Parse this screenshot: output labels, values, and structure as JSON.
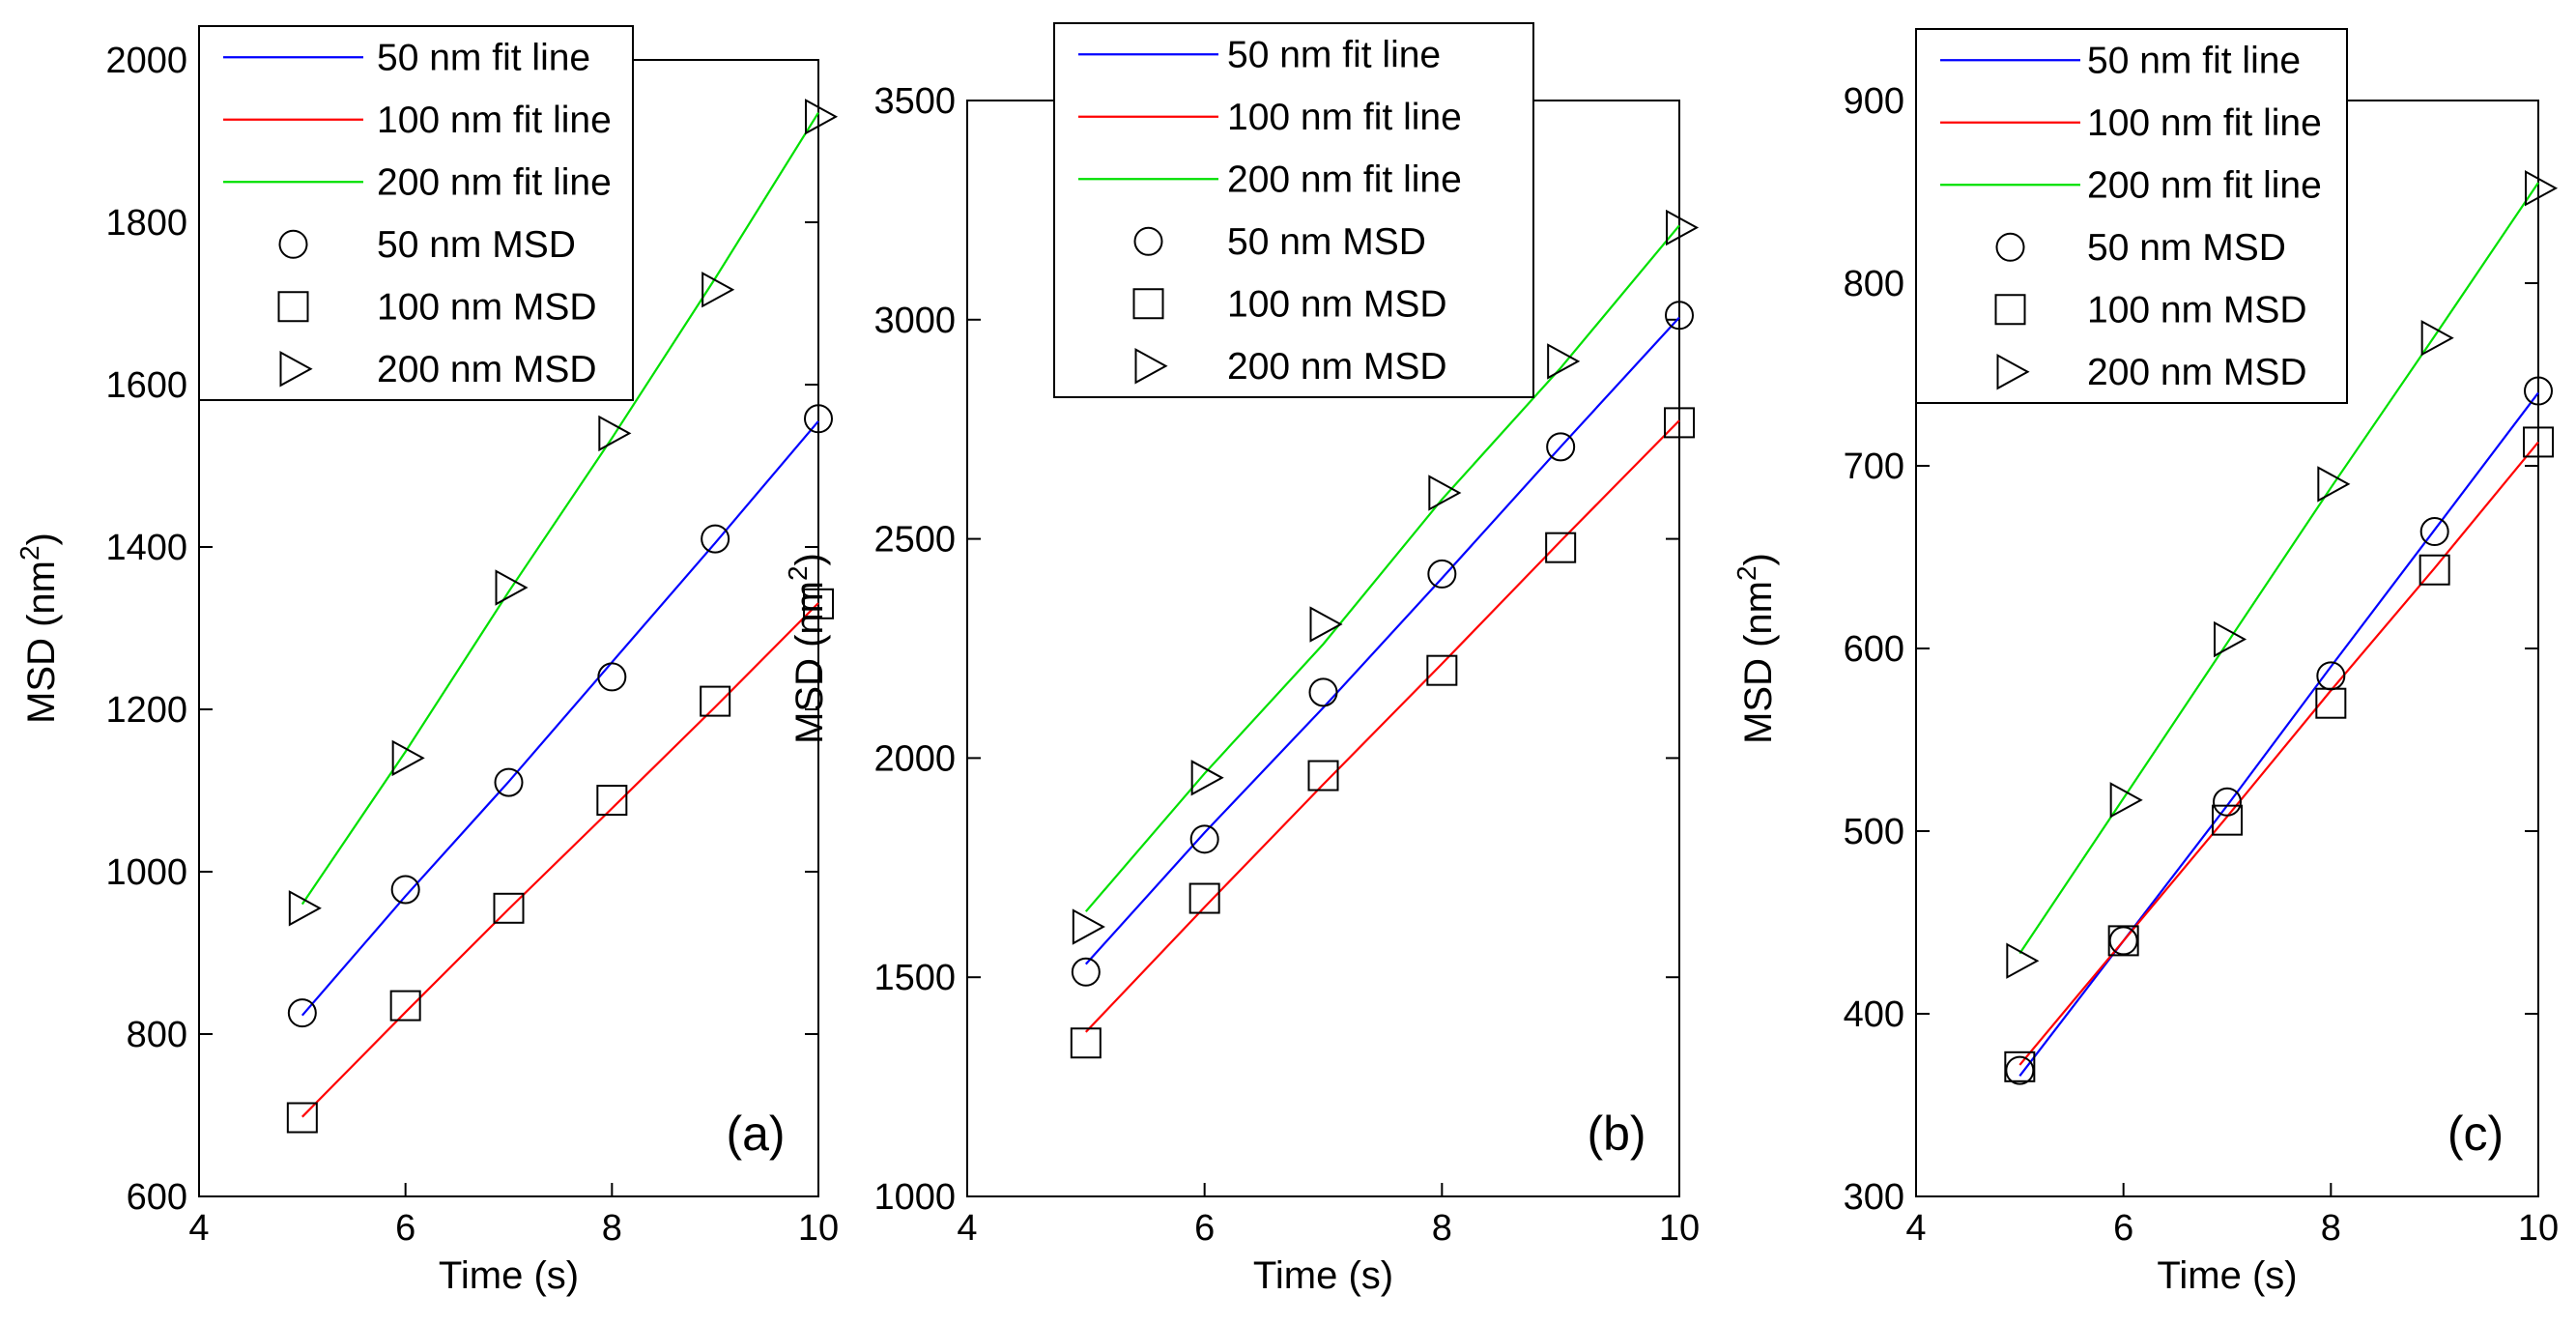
{
  "chart_data": [
    {
      "type": "line",
      "panel_label": "(a)",
      "xlabel": "Time (s)",
      "ylabel": "MSD (nm",
      "ylabel_sup": "2",
      "ylabel_end": ")",
      "xlim": [
        4,
        10
      ],
      "ylim": [
        600,
        2000
      ],
      "xticks": [
        4,
        6,
        8,
        10
      ],
      "yticks": [
        600,
        800,
        1000,
        1200,
        1400,
        1600,
        1800,
        2000
      ],
      "x": [
        5,
        6,
        7,
        8,
        9,
        10
      ],
      "series": [
        {
          "name": "50 nm fit line",
          "kind": "line",
          "color": "#0000ff",
          "values": [
            823,
            970,
            1111,
            1258,
            1405,
            1555
          ]
        },
        {
          "name": "100 nm fit line",
          "kind": "line",
          "color": "#ff0000",
          "values": [
            698,
            827,
            954,
            1078,
            1203,
            1331
          ]
        },
        {
          "name": "200 nm fit line",
          "kind": "line",
          "color": "#00e000",
          "values": [
            960,
            1148,
            1345,
            1534,
            1731,
            1935
          ]
        },
        {
          "name": "50 nm MSD",
          "kind": "marker",
          "marker": "circle",
          "values": [
            826,
            978,
            1110,
            1240,
            1410,
            1558
          ]
        },
        {
          "name": "100 nm MSD",
          "kind": "marker",
          "marker": "square",
          "values": [
            697,
            835,
            955,
            1088,
            1210,
            1330
          ]
        },
        {
          "name": "200 nm MSD",
          "kind": "marker",
          "marker": "triangle-right",
          "values": [
            955,
            1140,
            1350,
            1540,
            1717,
            1930
          ]
        }
      ]
    },
    {
      "type": "line",
      "panel_label": "(b)",
      "xlabel": "Time (s)",
      "ylabel": "MSD (nm",
      "ylabel_sup": "2",
      "ylabel_end": ")",
      "xlim": [
        4,
        10
      ],
      "ylim": [
        1000,
        3500
      ],
      "xticks": [
        4,
        6,
        8,
        10
      ],
      "yticks": [
        1000,
        1500,
        2000,
        2500,
        3000,
        3500
      ],
      "x": [
        5,
        6,
        7,
        8,
        9,
        10
      ],
      "series": [
        {
          "name": "50 nm fit line",
          "kind": "line",
          "color": "#0000ff",
          "values": [
            1530,
            1830,
            2115,
            2410,
            2710,
            3005
          ]
        },
        {
          "name": "100 nm fit line",
          "kind": "line",
          "color": "#ff0000",
          "values": [
            1375,
            1660,
            1940,
            2215,
            2495,
            2770
          ]
        },
        {
          "name": "200 nm fit line",
          "kind": "line",
          "color": "#00e000",
          "values": [
            1650,
            1965,
            2260,
            2590,
            2890,
            3215
          ]
        },
        {
          "name": "50 nm MSD",
          "kind": "marker",
          "marker": "circle",
          "values": [
            1512,
            1815,
            2150,
            2420,
            2710,
            3010
          ]
        },
        {
          "name": "100 nm MSD",
          "kind": "marker",
          "marker": "square",
          "values": [
            1350,
            1680,
            1960,
            2200,
            2480,
            2765
          ]
        },
        {
          "name": "200 nm MSD",
          "kind": "marker",
          "marker": "triangle-right",
          "values": [
            1615,
            1955,
            2305,
            2605,
            2905,
            3210
          ]
        }
      ]
    },
    {
      "type": "line",
      "panel_label": "(c)",
      "xlabel": "Time (s)",
      "ylabel": "MSD (nm",
      "ylabel_sup": "2",
      "ylabel_end": ")",
      "xlim": [
        4,
        10
      ],
      "ylim": [
        300,
        900
      ],
      "xticks": [
        4,
        6,
        8,
        10
      ],
      "yticks": [
        300,
        400,
        500,
        600,
        700,
        800,
        900
      ],
      "x": [
        5,
        6,
        7,
        8,
        9,
        10
      ],
      "series": [
        {
          "name": "50 nm fit line",
          "kind": "line",
          "color": "#0000ff",
          "values": [
            366,
            440,
            514,
            590,
            665,
            740
          ]
        },
        {
          "name": "100 nm fit line",
          "kind": "line",
          "color": "#ff0000",
          "values": [
            372,
            440,
            508,
            577,
            644,
            713
          ]
        },
        {
          "name": "200 nm fit line",
          "kind": "line",
          "color": "#00e000",
          "values": [
            433,
            518,
            603,
            688,
            771,
            855
          ]
        },
        {
          "name": "50 nm MSD",
          "kind": "marker",
          "marker": "circle",
          "values": [
            369,
            440,
            516,
            585,
            664,
            741
          ]
        },
        {
          "name": "100 nm MSD",
          "kind": "marker",
          "marker": "square",
          "values": [
            371,
            440,
            506,
            570,
            643,
            713
          ]
        },
        {
          "name": "200 nm MSD",
          "kind": "marker",
          "marker": "triangle-right",
          "values": [
            429,
            517,
            605,
            690,
            770,
            852
          ]
        }
      ]
    }
  ]
}
